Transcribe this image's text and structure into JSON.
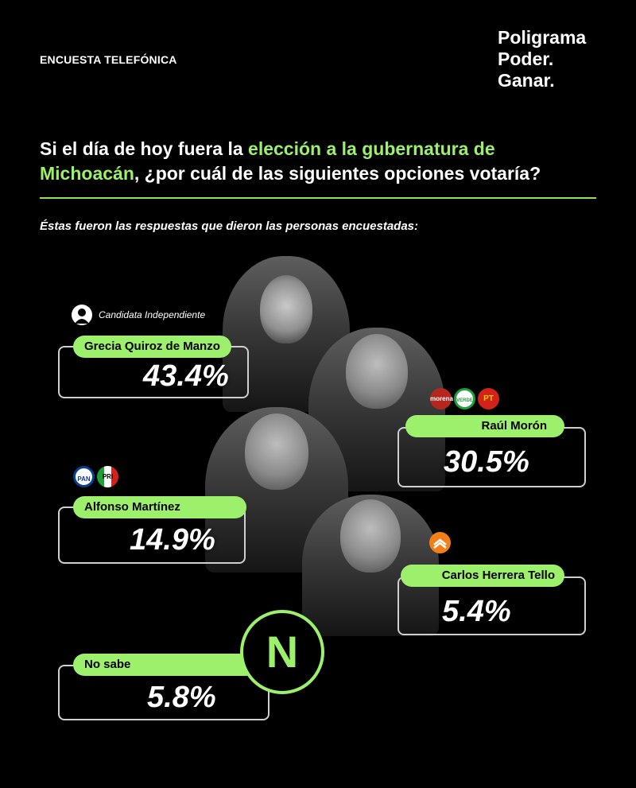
{
  "header": {
    "survey_type": "ENCUESTA TELEFÓNICA",
    "brand_lines": [
      "Poligrama",
      "Poder.",
      "Ganar."
    ]
  },
  "question": {
    "part1": "Si el día de hoy fuera la ",
    "highlight": "elección a la gubernatura de Michoacán",
    "part2": ", ¿por cuál de las siguientes opciones votaría?"
  },
  "subtitle": "Éstas fueron las respuestas que dieron las personas encuestadas:",
  "colors": {
    "accent": "#9cf06b",
    "background": "#000000"
  },
  "chart_data": {
    "type": "bar",
    "unit": "%",
    "categories": [
      "Grecia Quiroz de Manzo",
      "Raúl Morón",
      "Alfonso Martínez",
      "Carlos Herrera Tello",
      "No sabe"
    ],
    "values": [
      43.4,
      30.5,
      14.9,
      5.4,
      5.8
    ],
    "value_labels": [
      "43.4%",
      "30.5%",
      "14.9%",
      "5.4%",
      "5.8%"
    ],
    "annotations": {
      "Grecia Quiroz de Manzo": "Candidata Independiente",
      "Raúl Morón": "morena / PVEM / PT",
      "Alfonso Martínez": "PAN / PRI",
      "Carlos Herrera Tello": "Movimiento Ciudadano",
      "No sabe": "N"
    }
  },
  "candidates": [
    {
      "name": "Grecia Quiroz de Manzo",
      "value": "43.4%",
      "tag": "Candidata Independiente"
    },
    {
      "name": "Raúl Morón",
      "value": "30.5%",
      "logos": [
        "morena",
        "VERDE",
        "PT"
      ]
    },
    {
      "name": "Alfonso Martínez",
      "value": "14.9%",
      "logos": [
        "PAN",
        "PRI"
      ]
    },
    {
      "name": "Carlos Herrera Tello",
      "value": "5.4%",
      "logos": [
        "MC"
      ]
    },
    {
      "name": "No sabe",
      "value": "5.8%",
      "badge": "N"
    }
  ]
}
